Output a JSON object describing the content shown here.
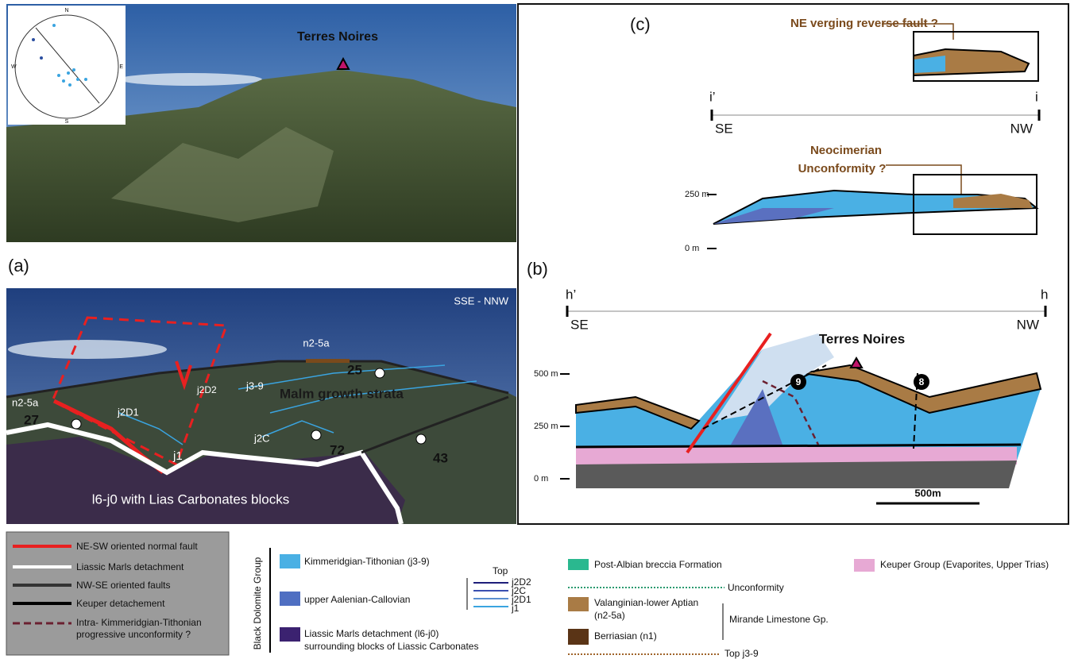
{
  "photo": {
    "title": "Terres Noires",
    "stereonet": {
      "north": "N",
      "south": "S",
      "east": "E",
      "west": "W"
    }
  },
  "panel_a": {
    "label": "(a)",
    "orientation": "SSE - NNW",
    "units": {
      "top": "n2-5a",
      "left": "n2-5a",
      "j2D2": "j2D2",
      "j3_9": "j3-9",
      "j2D1": "j2D1",
      "j2C": "j2C",
      "j1": "j1",
      "base": "l6-j0 with Lias Carbonates blocks"
    },
    "annotation": "Malm growth strata",
    "dips": [
      "27",
      "25",
      "72",
      "43"
    ]
  },
  "panel_b": {
    "label": "(b)",
    "start": "h’",
    "end": "h",
    "start_dir": "SE",
    "end_dir": "NW",
    "title": "Terres Noires",
    "elevations": [
      "500 m",
      "250 m",
      "0 m"
    ],
    "markers": [
      "9",
      "8"
    ],
    "scale": "500m"
  },
  "panel_c": {
    "label": "(c)",
    "fault_note": "NE verging reverse fault ?",
    "start": "i’",
    "end": "i",
    "start_dir": "SE",
    "end_dir": "NW",
    "unconformity_note": [
      "Neocimerian",
      "Unconformity ?"
    ],
    "elevations": [
      "250 m",
      "0 m"
    ]
  },
  "legend": {
    "lines": [
      [
        "NE-SW oriented normal fault"
      ],
      [
        "Liassic Marls detachment"
      ],
      [
        "NW-SE oriented faults"
      ],
      [
        "Keuper detachement"
      ],
      [
        "Intra- Kimmeridgian-Tithonian",
        "progressive unconformity ?"
      ]
    ],
    "group": "Black Dolomite Group",
    "units": [
      [
        "Kimmeridgian-Tithonian (j3-9)"
      ],
      [
        "upper Aalenian-Callovian"
      ],
      [
        "Liassic Marls detachment (l6-j0)",
        "surrounding  blocks of Liassic Carbonates"
      ]
    ],
    "tops": {
      "title": "Top",
      "items": [
        "j2D2",
        "j2C",
        "j2D1",
        "j1"
      ]
    },
    "cover": {
      "breccia": "Post-Albian breccia Formation",
      "unconformity": "Unconformity",
      "valanginian": [
        "Valanginian-lower Aptian",
        "(n2-5a)"
      ],
      "group": "Mirande Limestone Gp.",
      "berriasian": "Berriasian (n1)",
      "top": "Top j3-9",
      "keuper": "Keuper Group (Evaporites, Upper Trias)"
    }
  }
}
